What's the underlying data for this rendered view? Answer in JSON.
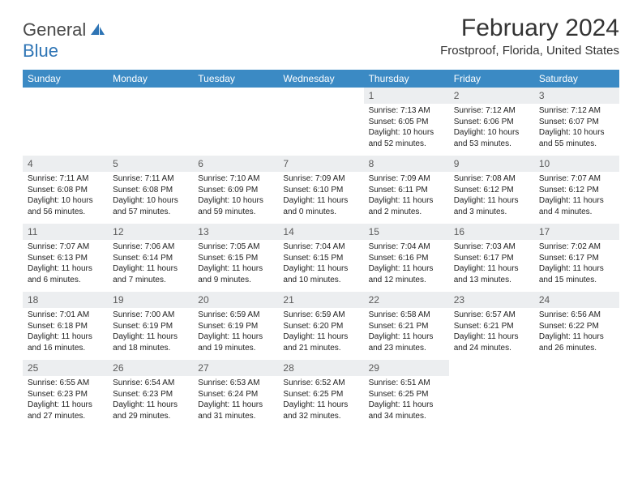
{
  "brand": {
    "word1": "General",
    "word2": "Blue"
  },
  "title": "February 2024",
  "location": "Frostproof, Florida, United States",
  "colors": {
    "header_bg": "#3b8ac4",
    "header_text": "#ffffff",
    "row_divider": "#2f75b5",
    "daynum_bg": "#eceef0",
    "daynum_text": "#5a5a5a",
    "logo_gray": "#4a4a4a",
    "logo_blue": "#2f75b5",
    "body_text": "#222222"
  },
  "weekdays": [
    "Sunday",
    "Monday",
    "Tuesday",
    "Wednesday",
    "Thursday",
    "Friday",
    "Saturday"
  ],
  "grid": [
    [
      null,
      null,
      null,
      null,
      {
        "n": "1",
        "sr": "7:13 AM",
        "ss": "6:05 PM",
        "dl": "10 hours and 52 minutes."
      },
      {
        "n": "2",
        "sr": "7:12 AM",
        "ss": "6:06 PM",
        "dl": "10 hours and 53 minutes."
      },
      {
        "n": "3",
        "sr": "7:12 AM",
        "ss": "6:07 PM",
        "dl": "10 hours and 55 minutes."
      }
    ],
    [
      {
        "n": "4",
        "sr": "7:11 AM",
        "ss": "6:08 PM",
        "dl": "10 hours and 56 minutes."
      },
      {
        "n": "5",
        "sr": "7:11 AM",
        "ss": "6:08 PM",
        "dl": "10 hours and 57 minutes."
      },
      {
        "n": "6",
        "sr": "7:10 AM",
        "ss": "6:09 PM",
        "dl": "10 hours and 59 minutes."
      },
      {
        "n": "7",
        "sr": "7:09 AM",
        "ss": "6:10 PM",
        "dl": "11 hours and 0 minutes."
      },
      {
        "n": "8",
        "sr": "7:09 AM",
        "ss": "6:11 PM",
        "dl": "11 hours and 2 minutes."
      },
      {
        "n": "9",
        "sr": "7:08 AM",
        "ss": "6:12 PM",
        "dl": "11 hours and 3 minutes."
      },
      {
        "n": "10",
        "sr": "7:07 AM",
        "ss": "6:12 PM",
        "dl": "11 hours and 4 minutes."
      }
    ],
    [
      {
        "n": "11",
        "sr": "7:07 AM",
        "ss": "6:13 PM",
        "dl": "11 hours and 6 minutes."
      },
      {
        "n": "12",
        "sr": "7:06 AM",
        "ss": "6:14 PM",
        "dl": "11 hours and 7 minutes."
      },
      {
        "n": "13",
        "sr": "7:05 AM",
        "ss": "6:15 PM",
        "dl": "11 hours and 9 minutes."
      },
      {
        "n": "14",
        "sr": "7:04 AM",
        "ss": "6:15 PM",
        "dl": "11 hours and 10 minutes."
      },
      {
        "n": "15",
        "sr": "7:04 AM",
        "ss": "6:16 PM",
        "dl": "11 hours and 12 minutes."
      },
      {
        "n": "16",
        "sr": "7:03 AM",
        "ss": "6:17 PM",
        "dl": "11 hours and 13 minutes."
      },
      {
        "n": "17",
        "sr": "7:02 AM",
        "ss": "6:17 PM",
        "dl": "11 hours and 15 minutes."
      }
    ],
    [
      {
        "n": "18",
        "sr": "7:01 AM",
        "ss": "6:18 PM",
        "dl": "11 hours and 16 minutes."
      },
      {
        "n": "19",
        "sr": "7:00 AM",
        "ss": "6:19 PM",
        "dl": "11 hours and 18 minutes."
      },
      {
        "n": "20",
        "sr": "6:59 AM",
        "ss": "6:19 PM",
        "dl": "11 hours and 19 minutes."
      },
      {
        "n": "21",
        "sr": "6:59 AM",
        "ss": "6:20 PM",
        "dl": "11 hours and 21 minutes."
      },
      {
        "n": "22",
        "sr": "6:58 AM",
        "ss": "6:21 PM",
        "dl": "11 hours and 23 minutes."
      },
      {
        "n": "23",
        "sr": "6:57 AM",
        "ss": "6:21 PM",
        "dl": "11 hours and 24 minutes."
      },
      {
        "n": "24",
        "sr": "6:56 AM",
        "ss": "6:22 PM",
        "dl": "11 hours and 26 minutes."
      }
    ],
    [
      {
        "n": "25",
        "sr": "6:55 AM",
        "ss": "6:23 PM",
        "dl": "11 hours and 27 minutes."
      },
      {
        "n": "26",
        "sr": "6:54 AM",
        "ss": "6:23 PM",
        "dl": "11 hours and 29 minutes."
      },
      {
        "n": "27",
        "sr": "6:53 AM",
        "ss": "6:24 PM",
        "dl": "11 hours and 31 minutes."
      },
      {
        "n": "28",
        "sr": "6:52 AM",
        "ss": "6:25 PM",
        "dl": "11 hours and 32 minutes."
      },
      {
        "n": "29",
        "sr": "6:51 AM",
        "ss": "6:25 PM",
        "dl": "11 hours and 34 minutes."
      },
      null,
      null
    ]
  ],
  "labels": {
    "sunrise": "Sunrise:",
    "sunset": "Sunset:",
    "daylight": "Daylight:"
  }
}
